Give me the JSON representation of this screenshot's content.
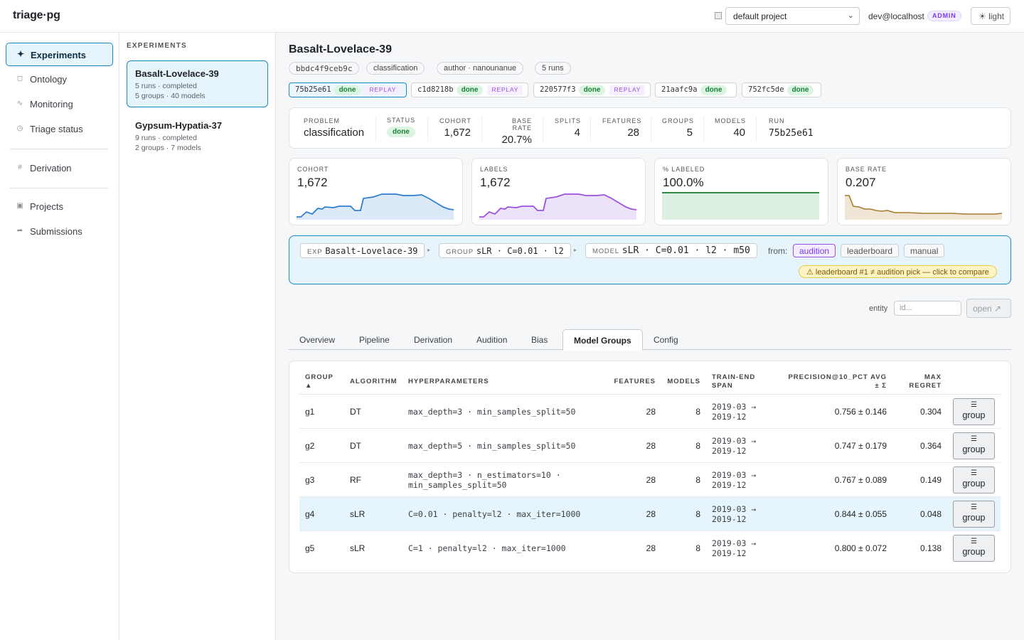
{
  "brand": "triage·pg",
  "topbar": {
    "project": "default project",
    "user": "dev@localhost",
    "role": "ADMIN",
    "theme": "☀ light"
  },
  "nav": {
    "items": [
      {
        "icon": "✦",
        "label": "Experiments"
      },
      {
        "icon": "◻",
        "label": "Ontology"
      },
      {
        "icon": "∿",
        "label": "Monitoring"
      },
      {
        "icon": "◷",
        "label": "Triage status"
      },
      {
        "icon": "#",
        "label": "Derivation"
      },
      {
        "icon": "▣",
        "label": "Projects"
      },
      {
        "icon": "➦",
        "label": "Submissions"
      }
    ]
  },
  "experiments": {
    "title": "EXPERIMENTS",
    "list": [
      {
        "name": "Basalt-Lovelace-39",
        "line1": "5 runs · completed",
        "line2": "5 groups · 40 models"
      },
      {
        "name": "Gypsum-Hypatia-37",
        "line1": "9 runs · completed",
        "line2": "2 groups · 7 models"
      }
    ]
  },
  "main": {
    "title": "Basalt-Lovelace-39",
    "chips": [
      "bbdc4f9ceb9c",
      "classification",
      "author · nanounanue",
      "5 runs"
    ],
    "runs": [
      {
        "id": "75b25e61",
        "status": "done",
        "replay": "REPLAY"
      },
      {
        "id": "c1d8218b",
        "status": "done",
        "replay": "REPLAY"
      },
      {
        "id": "220577f3",
        "status": "done",
        "replay": "REPLAY"
      },
      {
        "id": "21aafc9a",
        "status": "done",
        "replay": ""
      },
      {
        "id": "752fc5de",
        "status": "done",
        "replay": ""
      }
    ],
    "stats": {
      "problem_label": "PROBLEM",
      "problem": "classification",
      "status_label": "STATUS",
      "status": "done",
      "cohort_label": "COHORT",
      "cohort": "1,672",
      "base_rate_label": "BASE RATE",
      "base_rate": "20.7%",
      "splits_label": "SPLITS",
      "splits": "4",
      "features_label": "FEATURES",
      "features": "28",
      "groups_label": "GROUPS",
      "groups": "5",
      "models_label": "MODELS",
      "models": "40",
      "run_label": "RUN",
      "run": "75b25e61"
    },
    "sparks": [
      {
        "label": "COHORT",
        "value": "1,672",
        "color": "#2f7fd1",
        "fill": "#dbe9f8"
      },
      {
        "label": "LABELS",
        "value": "1,672",
        "color": "#9b51e0",
        "fill": "#ece2fa"
      },
      {
        "label": "% LABELED",
        "value": "100.0%",
        "color": "#2f8a46",
        "fill": "#dcefe0"
      },
      {
        "label": "BASE RATE",
        "value": "0.207",
        "color": "#a67c2b",
        "fill": "#efe6d5"
      }
    ],
    "context": {
      "exp_label": "EXP",
      "exp": "Basalt-Lovelace-39",
      "group_label": "GROUP",
      "group": "sLR · C=0.01 · l2",
      "model_label": "MODEL",
      "model": "sLR · C=0.01 · l2 · m50",
      "from": "from:",
      "sources": [
        "audition",
        "leaderboard",
        "manual"
      ],
      "warning": "⚠ leaderboard #1 ≠ audition pick — click to compare"
    },
    "entity": {
      "label": "entity",
      "placeholder": "id...",
      "open": "open ↗"
    },
    "tabs": [
      "Overview",
      "Pipeline",
      "Derivation",
      "Audition",
      "Bias",
      "Model Groups",
      "Config"
    ],
    "table": {
      "headers": {
        "group": "GROUP",
        "group_sort": "▲",
        "algorithm": "ALGORITHM",
        "hyper": "HYPERPARAMETERS",
        "features": "FEATURES",
        "models": "MODELS",
        "span1": "TRAIN-END",
        "span2": "SPAN",
        "prec1": "PRECISION@10_PCT AVG",
        "prec2": "± Σ",
        "regret1": "MAX",
        "regret2": "REGRET"
      },
      "button_label": "group",
      "rows": [
        {
          "group": "g1",
          "algo": "DT",
          "hyper1": "max_depth=3 · min_samples_split=50",
          "hyper2": "",
          "features": "28",
          "models": "8",
          "span1": "2019-03 →",
          "span2": "2019-12",
          "prec": "0.756 ± 0.146",
          "regret": "0.304"
        },
        {
          "group": "g2",
          "algo": "DT",
          "hyper1": "max_depth=5 · min_samples_split=50",
          "hyper2": "",
          "features": "28",
          "models": "8",
          "span1": "2019-03 →",
          "span2": "2019-12",
          "prec": "0.747 ± 0.179",
          "regret": "0.364"
        },
        {
          "group": "g3",
          "algo": "RF",
          "hyper1": "max_depth=3 · n_estimators=10 ·",
          "hyper2": "min_samples_split=50",
          "features": "28",
          "models": "8",
          "span1": "2019-03 →",
          "span2": "2019-12",
          "prec": "0.767 ± 0.089",
          "regret": "0.149"
        },
        {
          "group": "g4",
          "algo": "sLR",
          "hyper1": "C=0.01 · penalty=l2 · max_iter=1000",
          "hyper2": "",
          "features": "28",
          "models": "8",
          "span1": "2019-03 →",
          "span2": "2019-12",
          "prec": "0.844 ± 0.055",
          "regret": "0.048"
        },
        {
          "group": "g5",
          "algo": "sLR",
          "hyper1": "C=1 · penalty=l2 · max_iter=1000",
          "hyper2": "",
          "features": "28",
          "models": "8",
          "span1": "2019-03 →",
          "span2": "2019-12",
          "prec": "0.800 ± 0.072",
          "regret": "0.138"
        }
      ]
    }
  }
}
